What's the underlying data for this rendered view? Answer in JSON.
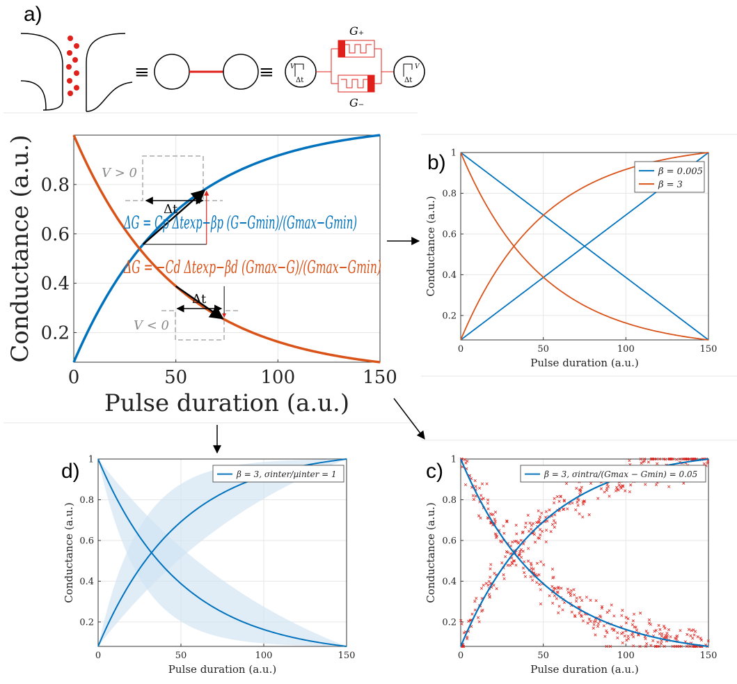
{
  "panel_labels": {
    "a": "a)",
    "b": "b)",
    "c": "c)",
    "d": "d)"
  },
  "schematic": {
    "equiv_symbol": "≡",
    "g_plus": "G₊",
    "g_minus": "G₋",
    "source_v": "V",
    "source_dt": "Δt"
  },
  "colors": {
    "blue": "#0072BD",
    "orange": "#D95319",
    "red": "#E0201B",
    "grid": "#e6e6e6",
    "dashed": "#aaaaaa",
    "band": "#cfe3f3"
  },
  "main_plot": {
    "pulse_pos_label": "V > 0",
    "pulse_neg_label": "V < 0",
    "dt_label": "Δt",
    "eq_potentiation": "ΔG = Cp Δtexp−βp (G−Gmin)/(Gmax−Gmin)",
    "eq_depression": "ΔG = −Cd Δtexp−βd (Gmax−G)/(Gmax−Gmin)"
  },
  "chart_data": [
    {
      "id": "main",
      "type": "line",
      "xlabel": "Pulse duration (a.u.)",
      "ylabel": "Conductance (a.u.)",
      "xlim": [
        0,
        150
      ],
      "ylim": [
        0.08,
        1.0
      ],
      "xticks": [
        0,
        50,
        100,
        150
      ],
      "yticks": [
        0.2,
        0.4,
        0.6,
        0.8
      ],
      "grid": true,
      "beta": 3,
      "series": [
        {
          "kind": "potentiation",
          "color": "#0072BD"
        },
        {
          "kind": "depression",
          "color": "#D95319"
        }
      ]
    },
    {
      "id": "b",
      "type": "line",
      "xlabel": "Pulse duration (a.u.)",
      "ylabel": "Conductance (a.u.)",
      "xlim": [
        0,
        150
      ],
      "ylim": [
        0.08,
        1.0
      ],
      "xticks": [
        0,
        50,
        100,
        150
      ],
      "yticks": [
        0.2,
        0.4,
        0.6,
        0.8,
        1
      ],
      "grid": true,
      "legend_position": "top-right",
      "series": [
        {
          "name": "β = 0.005",
          "beta": 0.005,
          "color": "#0072BD"
        },
        {
          "name": "β = 3",
          "beta": 3,
          "color": "#D95319"
        }
      ]
    },
    {
      "id": "c",
      "type": "scatter",
      "xlabel": "Pulse duration (a.u.)",
      "ylabel": "Conductance (a.u.)",
      "xlim": [
        0,
        150
      ],
      "ylim": [
        0.08,
        1.0
      ],
      "xticks": [
        0,
        50,
        100,
        150
      ],
      "yticks": [
        0.2,
        0.4,
        0.6,
        0.8,
        1
      ],
      "grid": true,
      "legend_position": "top",
      "series": [
        {
          "name": "β = 3, σintra/(Gmax − Gmin) = 0.05",
          "beta": 3,
          "color": "#0072BD",
          "noise_sigma": 0.05,
          "noise_color": "#E0201B"
        }
      ]
    },
    {
      "id": "d",
      "type": "area",
      "xlabel": "Pulse duration (a.u.)",
      "ylabel": "Conductance (a.u.)",
      "xlim": [
        0,
        150
      ],
      "ylim": [
        0.08,
        1.0
      ],
      "xticks": [
        0,
        50,
        100,
        150
      ],
      "yticks": [
        0.2,
        0.4,
        0.6,
        0.8,
        1
      ],
      "grid": true,
      "legend_position": "top-right",
      "series": [
        {
          "name": "β = 3, σinter/μinter = 1",
          "beta": 3,
          "color": "#0072BD",
          "band_color": "#cfe3f3",
          "band_beta_low": 1.2,
          "band_beta_high": 6
        }
      ]
    }
  ]
}
